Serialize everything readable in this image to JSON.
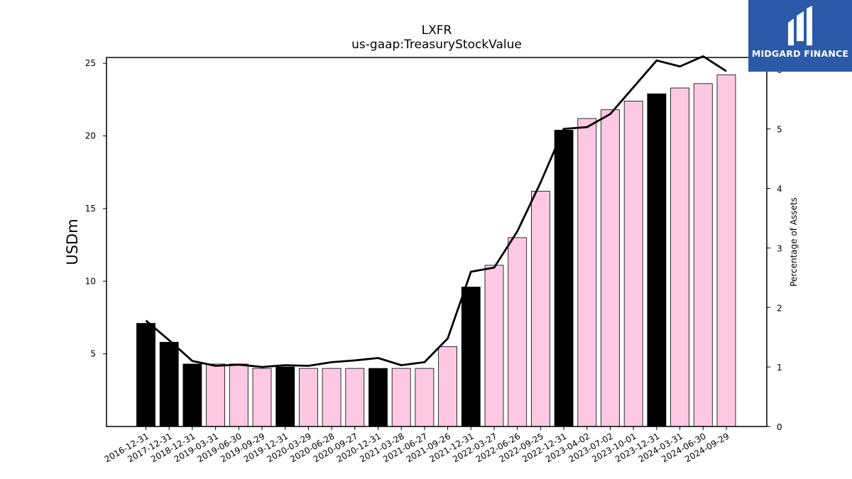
{
  "brand": {
    "name": "MIDGARD FINANCE",
    "color": "#2b5aa8",
    "icon": "midgard-logo-icon"
  },
  "chart_data": {
    "type": "bar",
    "title": "LXFR",
    "subtitle": "us-gaap:TreasuryStockValue",
    "ylabel": "USDm",
    "y2label": "Percentage of Assets",
    "ylim": [
      0,
      25.4
    ],
    "y2lim": [
      0,
      6.2
    ],
    "yticks": [
      5,
      10,
      15,
      20,
      25
    ],
    "y2ticks": [
      0,
      1,
      2,
      3,
      4,
      5,
      6
    ],
    "categories": [
      "2016-12-31",
      "2017-12-31",
      "2018-12-31",
      "2019-03-31",
      "2019-06-30",
      "2019-09-29",
      "2019-12-31",
      "2020-03-29",
      "2020-06-28",
      "2020-09-27",
      "2020-12-31",
      "2021-03-28",
      "2021-06-27",
      "2021-09-26",
      "2021-12-31",
      "2022-03-27",
      "2022-06-26",
      "2022-09-25",
      "2022-12-31",
      "2023-04-02",
      "2023-07-02",
      "2023-10-01",
      "2023-12-31",
      "2024-03-31",
      "2024-06-30",
      "2024-09-29"
    ],
    "series": [
      {
        "type": "bar",
        "values": [
          7.1,
          5.8,
          4.3,
          4.3,
          4.3,
          4.0,
          4.1,
          4.0,
          4.0,
          4.0,
          4.0,
          4.0,
          4.0,
          5.5,
          9.6,
          11.1,
          13.0,
          16.2,
          20.4,
          21.2,
          21.8,
          22.4,
          22.9,
          23.3,
          23.6,
          24.2
        ],
        "colors": {
          "annual": "#000000",
          "quarterly": "#fcc8e2"
        },
        "annual": [
          true,
          true,
          true,
          false,
          false,
          false,
          true,
          false,
          false,
          false,
          true,
          false,
          false,
          false,
          true,
          false,
          false,
          false,
          true,
          false,
          false,
          false,
          true,
          false,
          false,
          false
        ]
      },
      {
        "type": "line",
        "axis": "right",
        "color": "#000000",
        "values": [
          1.78,
          1.45,
          1.1,
          1.02,
          1.04,
          1.0,
          1.03,
          1.02,
          1.08,
          1.11,
          1.15,
          1.03,
          1.08,
          1.48,
          2.6,
          2.67,
          3.28,
          4.1,
          5.0,
          5.03,
          5.25,
          5.7,
          6.15,
          6.05,
          6.22,
          5.97
        ]
      }
    ],
    "grid": false,
    "legend": "none"
  }
}
